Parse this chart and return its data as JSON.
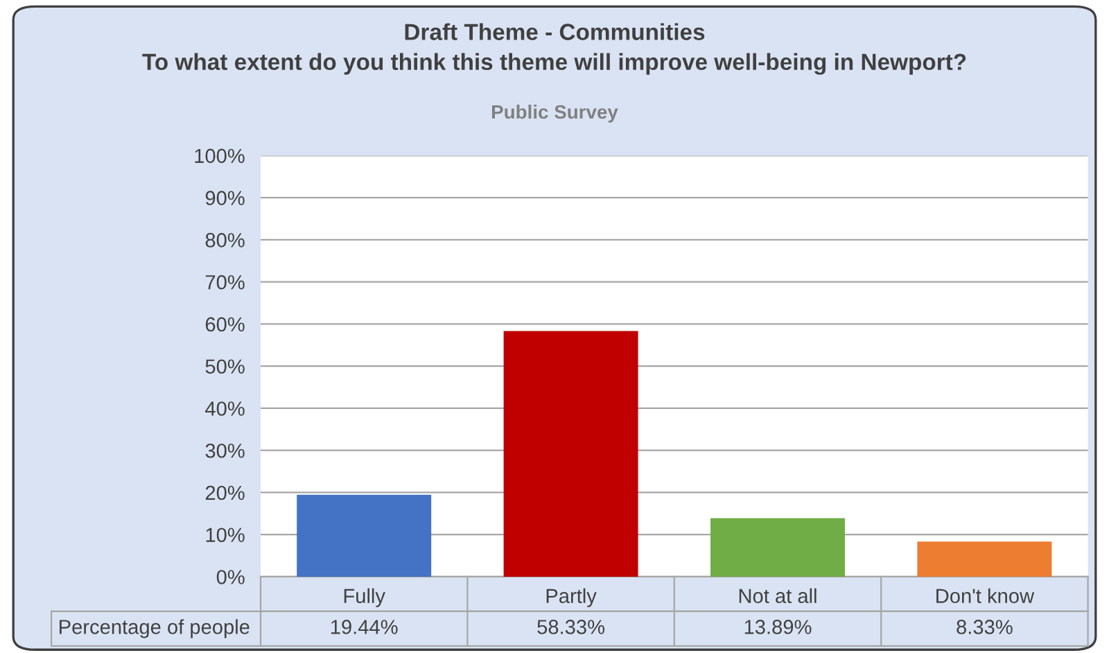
{
  "chart_data": {
    "type": "bar",
    "title": "Draft Theme - Communities\nTo what extent do you think this theme will improve well-being in Newport?",
    "subtitle": "Public Survey",
    "categories": [
      "Fully",
      "Partly",
      "Not at all",
      "Don't know"
    ],
    "series": [
      {
        "name": "Percentage of people",
        "colors": [
          "#4472c4",
          "#c00000",
          "#70ad47",
          "#ed7d31"
        ],
        "values": [
          19.44,
          58.33,
          13.89,
          8.33
        ],
        "value_labels": [
          "19.44%",
          "58.33%",
          "13.89%",
          "8.33%"
        ]
      }
    ],
    "ylim": [
      0,
      100
    ],
    "yticks": [
      {
        "value": 0,
        "label": "0%"
      },
      {
        "value": 10,
        "label": "10%"
      },
      {
        "value": 20,
        "label": "20%"
      },
      {
        "value": 30,
        "label": "30%"
      },
      {
        "value": 40,
        "label": "40%"
      },
      {
        "value": 50,
        "label": "50%"
      },
      {
        "value": 60,
        "label": "60%"
      },
      {
        "value": 70,
        "label": "70%"
      },
      {
        "value": 80,
        "label": "80%"
      },
      {
        "value": 90,
        "label": "90%"
      },
      {
        "value": 100,
        "label": "100%"
      }
    ],
    "grid": "y",
    "legend": false
  }
}
